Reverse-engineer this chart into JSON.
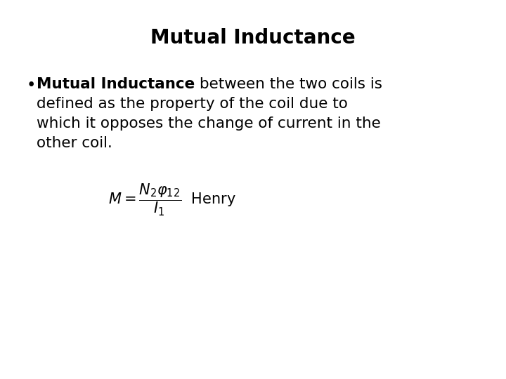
{
  "title": "Mutual Inductance",
  "title_fontsize": 20,
  "title_fontweight": "bold",
  "bg_color": "#ffffff",
  "text_color": "#000000",
  "bullet_bold": "Mutual Inductance",
  "bullet_normal_line1": " between the two coils is",
  "bullet_line2": "defined as the property of the coil due to",
  "bullet_line3": "which it opposes the change of current in the",
  "bullet_line4": "other coil.",
  "formula_latex": "$\\mathdefault{M = \\dfrac{N_2\\varphi_{12}}{I_1}}$  Henry",
  "formula_fontsize": 15,
  "bullet_fontsize": 15.5,
  "body_font": "DejaVu Sans"
}
